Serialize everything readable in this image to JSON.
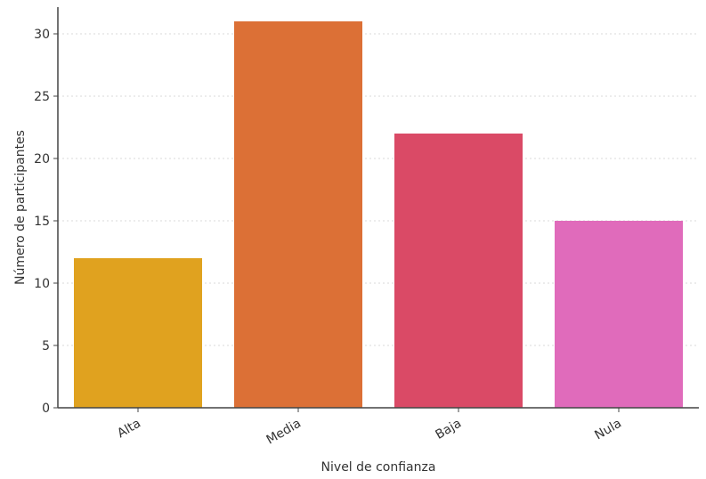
{
  "chart_data": {
    "type": "bar",
    "title": "",
    "xlabel": "Nivel de confianza",
    "ylabel": "Número de participantes",
    "categories": [
      "Alta",
      "Media",
      "Baja",
      "Nula"
    ],
    "values": [
      12,
      31,
      22,
      15
    ],
    "colors": [
      "#e0a21f",
      "#dc7036",
      "#da4a66",
      "#e06bbb"
    ],
    "ylim": [
      0,
      32
    ],
    "yticks": [
      0,
      5,
      10,
      15,
      20,
      25,
      30
    ],
    "grid": "y",
    "legend": "none"
  }
}
